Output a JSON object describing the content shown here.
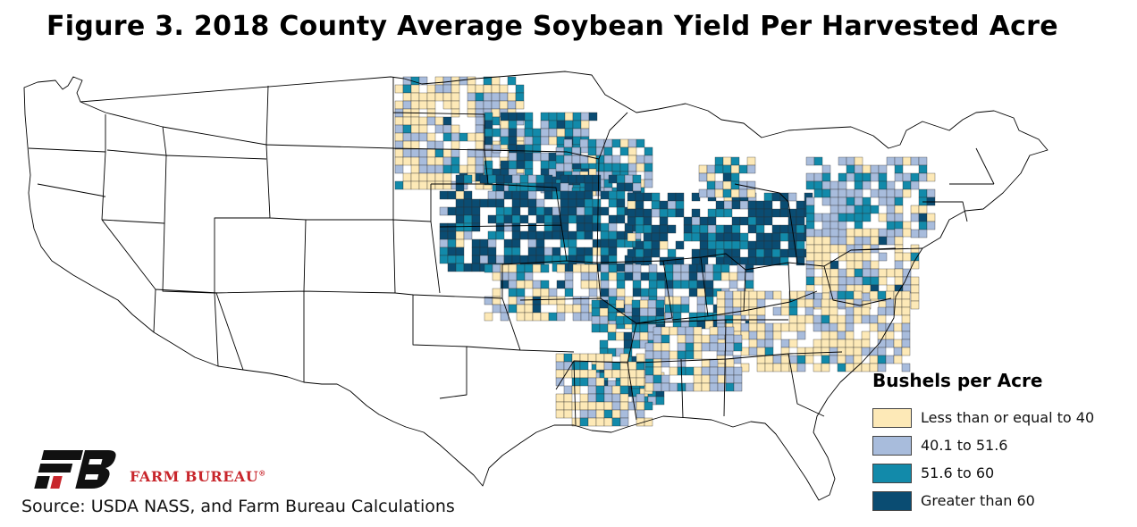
{
  "title": "Figure 3. 2018 County Average Soybean Yield Per Harvested Acre",
  "legend": {
    "title": "Bushels per Acre",
    "items": [
      {
        "label": "Less than or equal to 40",
        "color": "#fde9b7",
        "class": 1
      },
      {
        "label": "40.1 to 51.6",
        "color": "#a8bcdc",
        "class": 2
      },
      {
        "label": "51.6 to 60",
        "color": "#128aaa",
        "class": 3
      },
      {
        "label": "Greater than 60",
        "color": "#0a4c72",
        "class": 4
      }
    ]
  },
  "brand": {
    "name": "FARM BUREAU",
    "trademark": "®",
    "colors": {
      "primary": "#c8262c",
      "mark": "#111111"
    }
  },
  "source": "Source: USDA NASS, and Farm Bureau Calculations",
  "map": {
    "extent": "contiguous-us",
    "state_outline_color": "#000000",
    "no_data_fill": "#ffffff"
  }
}
